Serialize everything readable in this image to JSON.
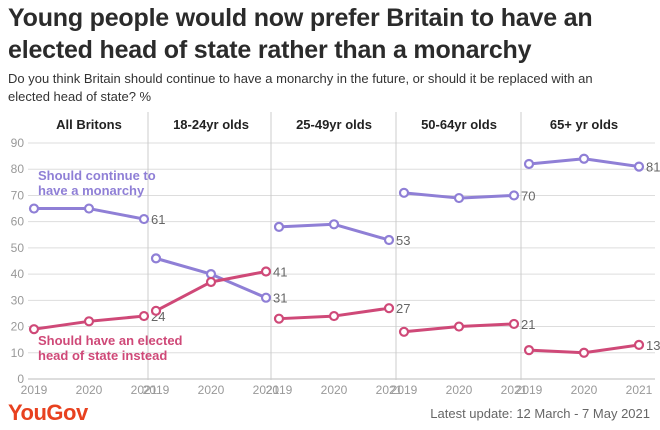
{
  "header": {
    "title": "Young people would now prefer Britain to have an elected head of state rather than a monarchy",
    "subtitle": "Do you think Britain should continue to have a monarchy in the future, or should it be replaced with an elected head of state? %"
  },
  "footer": {
    "logo": "YouGov",
    "update_label": "Latest update:",
    "update_range": "12 March - 7 May 2021"
  },
  "colors": {
    "monarchy": "#8f7fd6",
    "elected": "#cf4978",
    "grid": "#dddddd",
    "axis_text": "#999999"
  },
  "chart_data": {
    "type": "line",
    "ylim": [
      0,
      90
    ],
    "yticks": [
      0,
      10,
      20,
      30,
      40,
      50,
      60,
      70,
      80,
      90
    ],
    "x": [
      "2019",
      "2020",
      "2021"
    ],
    "series_labels": {
      "monarchy": [
        "Should continue to",
        "have a monarchy"
      ],
      "elected": [
        "Should have an elected",
        "head of state instead"
      ]
    },
    "panels": [
      {
        "title": "All Britons",
        "monarchy": [
          65,
          65,
          61
        ],
        "elected": [
          19,
          22,
          24
        ],
        "monarchy_end_label": "61",
        "elected_end_label": "24"
      },
      {
        "title": "18-24yr olds",
        "monarchy": [
          46,
          40,
          31
        ],
        "elected": [
          26,
          37,
          41
        ],
        "monarchy_end_label": "31",
        "elected_end_label": "41"
      },
      {
        "title": "25-49yr olds",
        "monarchy": [
          58,
          59,
          53
        ],
        "elected": [
          23,
          24,
          27
        ],
        "monarchy_end_label": "53",
        "elected_end_label": "27"
      },
      {
        "title": "50-64yr olds",
        "monarchy": [
          71,
          69,
          70
        ],
        "elected": [
          18,
          20,
          21
        ],
        "monarchy_end_label": "70",
        "elected_end_label": "21"
      },
      {
        "title": "65+ yr olds",
        "monarchy": [
          82,
          84,
          81
        ],
        "elected": [
          11,
          10,
          13
        ],
        "monarchy_end_label": "81",
        "elected_end_label": "13"
      }
    ]
  }
}
